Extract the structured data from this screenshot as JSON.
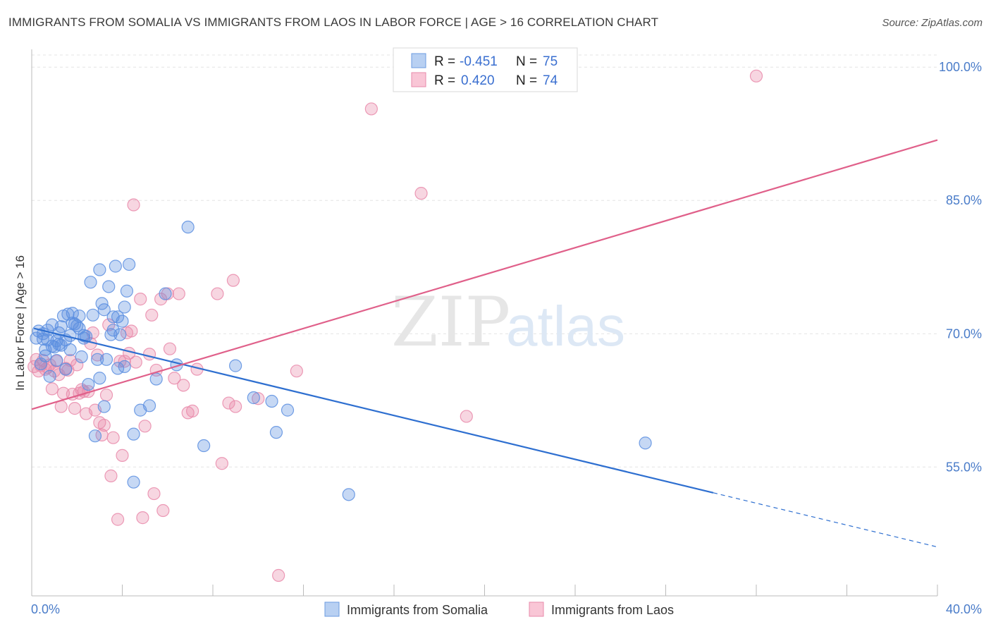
{
  "header": {
    "title": "IMMIGRANTS FROM SOMALIA VS IMMIGRANTS FROM LAOS IN LABOR FORCE | AGE > 16 CORRELATION CHART",
    "source": "Source: ZipAtlas.com"
  },
  "watermark": {
    "zip": "ZIP",
    "atlas": "atlas"
  },
  "legend": {
    "r_label": "R =",
    "n_label": "N =",
    "rows": [
      {
        "r": "-0.451",
        "n": "75",
        "fill": "#b8d0f2",
        "stroke": "#6b9be0"
      },
      {
        "r": "0.420",
        "n": "74",
        "fill": "#f9c6d6",
        "stroke": "#e88aab"
      }
    ]
  },
  "colors": {
    "somalia": "#5b8ee0",
    "laos": "#e98aaa",
    "somalia_line": "#2e6fd0",
    "laos_line": "#e0608a"
  },
  "chart_data": {
    "type": "scatter",
    "title": "IMMIGRANTS FROM SOMALIA VS IMMIGRANTS FROM LAOS IN LABOR FORCE | AGE > 16 CORRELATION CHART",
    "xlabel": "",
    "ylabel": "In Labor Force | Age > 16",
    "xlim": [
      0,
      40
    ],
    "ylim": [
      40.5,
      102
    ],
    "x_tick_labels": [
      "0.0%",
      "40.0%"
    ],
    "y_ticks": [
      55,
      70,
      85,
      100
    ],
    "y_tick_labels": [
      "55.0%",
      "70.0%",
      "85.0%",
      "100.0%"
    ],
    "grid": true,
    "legend_position": "top-center",
    "series": [
      {
        "name": "Immigrants from Somalia",
        "color": "#5b8ee0",
        "trend": {
          "x": [
            0.1,
            30.1
          ],
          "y": [
            70.6,
            52.1
          ],
          "dashed_to_x": 40,
          "dashed_to_y": 46.0
        },
        "points": [
          [
            0.2,
            69.5
          ],
          [
            0.3,
            70.3
          ],
          [
            0.5,
            69.4
          ],
          [
            0.6,
            68.2
          ],
          [
            0.7,
            70.4
          ],
          [
            0.8,
            65.2
          ],
          [
            0.9,
            68.6
          ],
          [
            0.9,
            71.0
          ],
          [
            1.1,
            67.0
          ],
          [
            1.1,
            69.2
          ],
          [
            1.2,
            70.1
          ],
          [
            1.3,
            68.7
          ],
          [
            1.3,
            70.8
          ],
          [
            1.4,
            72.0
          ],
          [
            1.5,
            69.3
          ],
          [
            1.6,
            72.2
          ],
          [
            1.7,
            68.2
          ],
          [
            1.8,
            71.2
          ],
          [
            1.8,
            72.3
          ],
          [
            2.0,
            70.9
          ],
          [
            2.1,
            70.6
          ],
          [
            2.2,
            67.4
          ],
          [
            2.3,
            69.5
          ],
          [
            2.4,
            69.7
          ],
          [
            2.5,
            64.3
          ],
          [
            2.6,
            75.8
          ],
          [
            2.7,
            72.1
          ],
          [
            2.8,
            58.5
          ],
          [
            2.9,
            67.1
          ],
          [
            3.0,
            77.2
          ],
          [
            3.1,
            73.4
          ],
          [
            3.2,
            72.7
          ],
          [
            3.2,
            61.8
          ],
          [
            3.3,
            67.1
          ],
          [
            3.4,
            75.3
          ],
          [
            3.5,
            69.9
          ],
          [
            3.6,
            71.9
          ],
          [
            3.6,
            70.4
          ],
          [
            3.7,
            77.6
          ],
          [
            3.8,
            71.9
          ],
          [
            3.8,
            66.1
          ],
          [
            3.9,
            69.9
          ],
          [
            4.0,
            71.4
          ],
          [
            4.1,
            66.3
          ],
          [
            4.1,
            73.0
          ],
          [
            4.2,
            74.8
          ],
          [
            4.3,
            77.8
          ],
          [
            4.5,
            53.3
          ],
          [
            4.5,
            58.7
          ],
          [
            4.8,
            61.4
          ],
          [
            5.2,
            61.9
          ],
          [
            5.5,
            64.9
          ],
          [
            5.9,
            74.5
          ],
          [
            6.4,
            66.5
          ],
          [
            6.9,
            82.0
          ],
          [
            7.6,
            57.4
          ],
          [
            9.0,
            66.4
          ],
          [
            9.8,
            62.8
          ],
          [
            10.6,
            62.4
          ],
          [
            10.8,
            58.9
          ],
          [
            11.3,
            61.4
          ],
          [
            14.0,
            51.9
          ],
          [
            27.1,
            57.7
          ],
          [
            0.4,
            66.6
          ],
          [
            1.0,
            68.5
          ],
          [
            1.5,
            66.0
          ],
          [
            1.9,
            71.1
          ],
          [
            2.3,
            69.8
          ],
          [
            0.7,
            69.3
          ],
          [
            1.2,
            68.8
          ],
          [
            0.5,
            70.0
          ],
          [
            2.1,
            72.0
          ],
          [
            1.7,
            69.8
          ],
          [
            3.0,
            65.0
          ],
          [
            0.6,
            67.5
          ]
        ]
      },
      {
        "name": "Immigrants from Laos",
        "color": "#e98aaa",
        "trend": {
          "x": [
            0,
            40
          ],
          "y": [
            61.5,
            91.8
          ]
        },
        "points": [
          [
            0.1,
            66.3
          ],
          [
            0.2,
            67.1
          ],
          [
            0.3,
            65.8
          ],
          [
            0.4,
            66.4
          ],
          [
            0.5,
            67.0
          ],
          [
            0.6,
            66.0
          ],
          [
            0.7,
            66.2
          ],
          [
            0.8,
            66.5
          ],
          [
            0.9,
            63.8
          ],
          [
            1.0,
            65.8
          ],
          [
            1.1,
            66.9
          ],
          [
            1.2,
            65.4
          ],
          [
            1.3,
            61.8
          ],
          [
            1.4,
            63.3
          ],
          [
            1.5,
            66.1
          ],
          [
            1.6,
            65.9
          ],
          [
            1.7,
            67.0
          ],
          [
            1.8,
            63.2
          ],
          [
            1.9,
            61.6
          ],
          [
            2.0,
            66.5
          ],
          [
            2.1,
            63.3
          ],
          [
            2.2,
            63.7
          ],
          [
            2.3,
            63.5
          ],
          [
            2.4,
            61.0
          ],
          [
            2.5,
            63.5
          ],
          [
            2.6,
            68.9
          ],
          [
            2.7,
            70.1
          ],
          [
            2.8,
            61.4
          ],
          [
            2.9,
            67.6
          ],
          [
            3.0,
            60.0
          ],
          [
            3.1,
            58.6
          ],
          [
            3.2,
            59.7
          ],
          [
            3.3,
            63.1
          ],
          [
            3.4,
            71.0
          ],
          [
            3.5,
            54.0
          ],
          [
            3.6,
            58.3
          ],
          [
            3.8,
            49.1
          ],
          [
            3.9,
            66.9
          ],
          [
            4.0,
            56.3
          ],
          [
            4.1,
            66.9
          ],
          [
            4.2,
            70.1
          ],
          [
            4.3,
            67.8
          ],
          [
            4.4,
            70.3
          ],
          [
            4.5,
            84.5
          ],
          [
            4.6,
            66.8
          ],
          [
            4.8,
            73.9
          ],
          [
            4.9,
            49.3
          ],
          [
            5.0,
            59.6
          ],
          [
            5.2,
            67.7
          ],
          [
            5.3,
            72.1
          ],
          [
            5.4,
            52.0
          ],
          [
            5.5,
            65.9
          ],
          [
            5.7,
            73.9
          ],
          [
            5.8,
            50.1
          ],
          [
            6.0,
            74.5
          ],
          [
            6.1,
            68.3
          ],
          [
            6.3,
            65.0
          ],
          [
            6.5,
            74.5
          ],
          [
            6.7,
            64.2
          ],
          [
            6.9,
            61.1
          ],
          [
            7.1,
            61.3
          ],
          [
            7.3,
            66.0
          ],
          [
            8.2,
            74.5
          ],
          [
            8.4,
            55.4
          ],
          [
            8.7,
            62.2
          ],
          [
            8.9,
            76.0
          ],
          [
            9.0,
            61.8
          ],
          [
            10.0,
            62.7
          ],
          [
            10.9,
            42.8
          ],
          [
            11.7,
            65.8
          ],
          [
            15.0,
            95.3
          ],
          [
            17.2,
            85.8
          ],
          [
            19.2,
            60.7
          ],
          [
            32.0,
            99.0
          ]
        ]
      }
    ]
  }
}
